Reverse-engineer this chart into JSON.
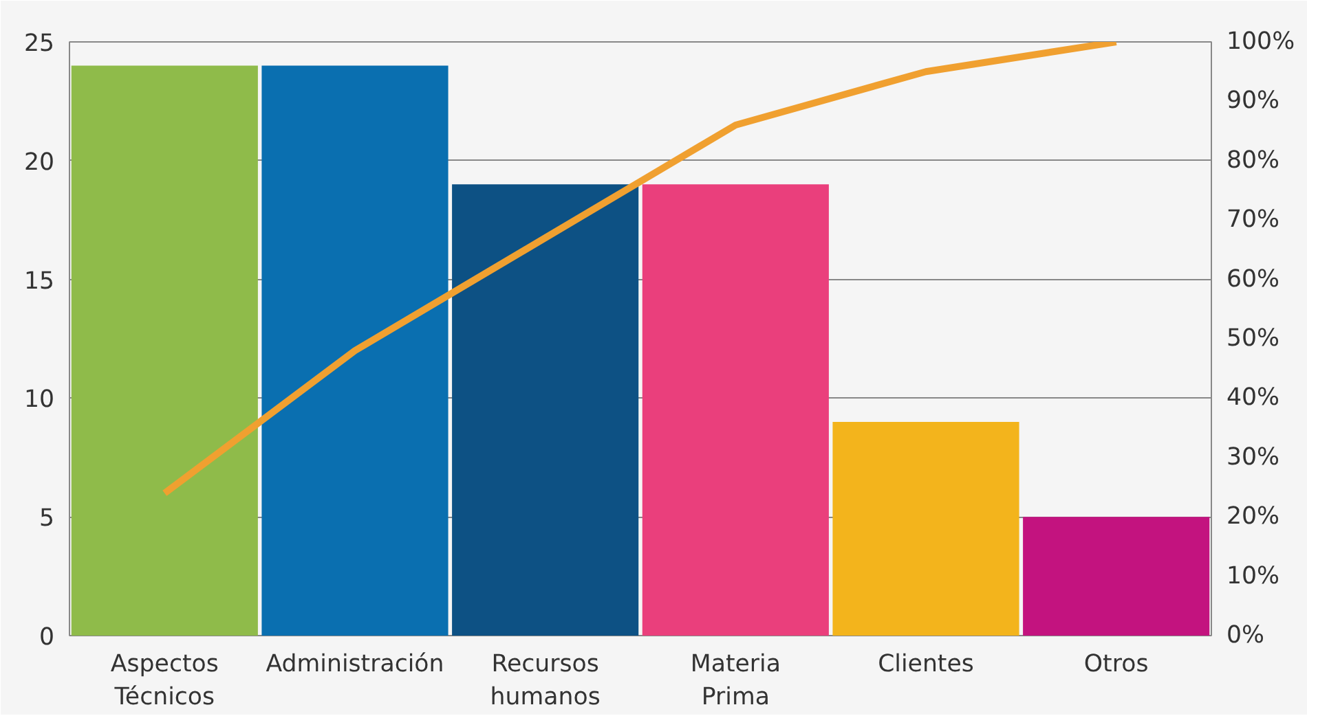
{
  "chart_data": {
    "type": "bar",
    "categories": [
      "Aspectos\nTécnicos",
      "Administración",
      "Recursos\nhumanos",
      "Materia\nPrima",
      "Clientes",
      "Otros"
    ],
    "series": [
      {
        "colors": [
          "#8fbb4a",
          "#0a6fb0",
          "#0d5184",
          "#ea3f7c",
          "#f3b41c",
          "#c3137f"
        ],
        "values": [
          24,
          24,
          19,
          19,
          9,
          5
        ]
      },
      {
        "type": "line",
        "axis": "y2",
        "color": "#f0a030",
        "values": [
          24,
          48,
          67,
          86,
          95,
          100
        ]
      }
    ],
    "ylim": [
      0,
      25
    ],
    "yticks": [
      0,
      5,
      10,
      15,
      20,
      25
    ],
    "y2lim": [
      0,
      100
    ],
    "y2ticks": [
      {
        "value": 0,
        "label": "0%"
      },
      {
        "value": 10,
        "label": "10%"
      },
      {
        "value": 20,
        "label": "20%"
      },
      {
        "value": 30,
        "label": "30%"
      },
      {
        "value": 40,
        "label": "40%"
      },
      {
        "value": 50,
        "label": "50%"
      },
      {
        "value": 60,
        "label": "60%"
      },
      {
        "value": 70,
        "label": "70%"
      },
      {
        "value": 80,
        "label": "80%"
      },
      {
        "value": 90,
        "label": "90%"
      },
      {
        "value": 100,
        "label": "100%"
      }
    ],
    "grid": "y",
    "line_style": "solid",
    "marker": "none"
  }
}
